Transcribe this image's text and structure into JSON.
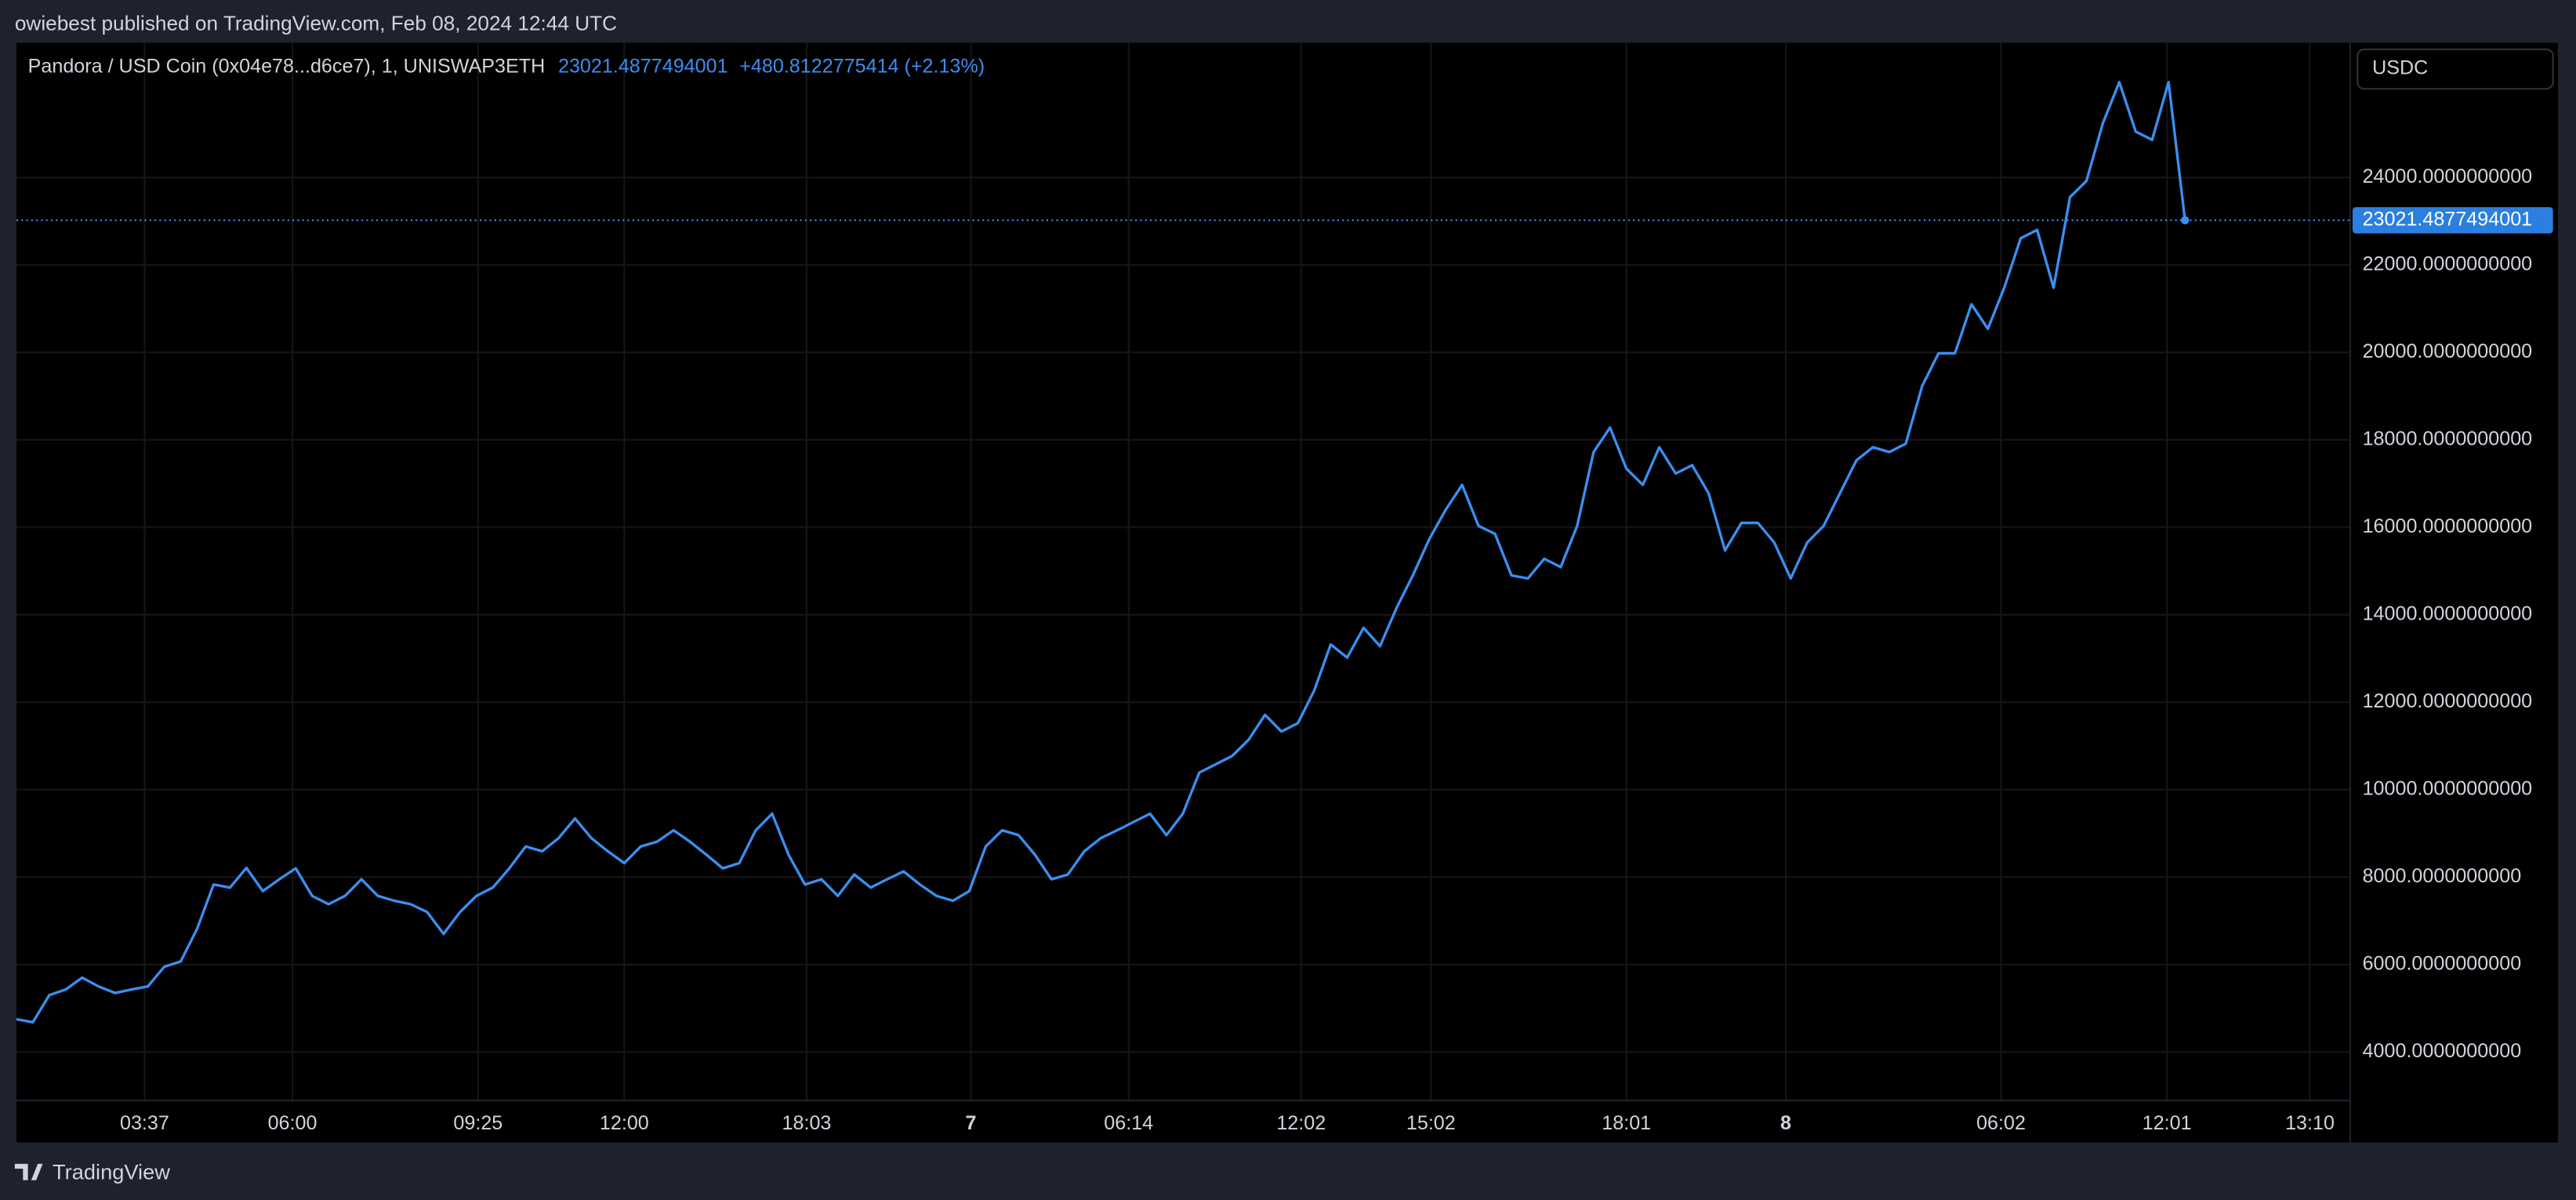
{
  "publisher": "owiebest published on TradingView.com, Feb 08, 2024 12:44 UTC",
  "legend": {
    "symbol": "Pandora / USD Coin (0x04e78...d6ce7), 1, UNISWAP3ETH",
    "price": "23021.4877494001",
    "change": "+480.8122775414 (+2.13%)"
  },
  "currency": "USDC",
  "footer": "TradingView",
  "chart_data": {
    "type": "line",
    "color": "#3a8ff0",
    "values": [
      4750,
      4680,
      5300,
      5430,
      5700,
      5500,
      5350,
      5430,
      5500,
      5950,
      6070,
      6820,
      7830,
      7760,
      8210,
      7680,
      7950,
      8200,
      7570,
      7380,
      7570,
      7950,
      7570,
      7460,
      7380,
      7200,
      6700,
      7200,
      7570,
      7760,
      8200,
      8700,
      8590,
      8890,
      9340,
      8890,
      8590,
      8320,
      8700,
      8810,
      9070,
      8810,
      8510,
      8200,
      8320,
      9070,
      9450,
      8510,
      7830,
      7950,
      7570,
      8060,
      7760,
      7950,
      8130,
      7830,
      7570,
      7460,
      7680,
      8700,
      9070,
      8960,
      8510,
      7950,
      8060,
      8590,
      8890,
      9070,
      9260,
      9450,
      8960,
      9450,
      10390,
      10580,
      10770,
      11140,
      11710,
      11330,
      11520,
      12270,
      13320,
      13020,
      13700,
      13280,
      14150,
      14900,
      15730,
      16400,
      16970,
      16030,
      15850,
      14900,
      14830,
      15280,
      15090,
      16030,
      17720,
      18280,
      17340,
      16970,
      17830,
      17230,
      17420,
      16780,
      15470,
      16100,
      16100,
      15650,
      14830,
      15650,
      16030,
      16780,
      17530,
      17830,
      17720,
      17910,
      19230,
      19980,
      19980,
      21100,
      20540,
      21480,
      22610,
      22800,
      21480,
      23550,
      23920,
      25240,
      26180,
      25050,
      24860,
      26180,
      23021.4877494001
    ],
    "xlim": [
      0,
      142
    ],
    "xticks": [
      {
        "value": 7.8,
        "label": "03:37"
      },
      {
        "value": 16.8,
        "label": "06:00"
      },
      {
        "value": 28.1,
        "label": "09:25"
      },
      {
        "value": 37,
        "label": "12:00"
      },
      {
        "value": 48.1,
        "label": "18:03"
      },
      {
        "value": 58.1,
        "label": "7"
      },
      {
        "value": 67.7,
        "label": "06:14"
      },
      {
        "value": 78.2,
        "label": "12:02"
      },
      {
        "value": 86.1,
        "label": "15:02"
      },
      {
        "value": 98,
        "label": "18:01"
      },
      {
        "value": 107.7,
        "label": "8"
      },
      {
        "value": 120.8,
        "label": "06:02"
      },
      {
        "value": 130.9,
        "label": "12:01"
      },
      {
        "value": 139.6,
        "label": "13:10"
      }
    ],
    "ylim": [
      2910,
      27080
    ],
    "yticks": [
      {
        "value": 4000,
        "label": "4000.0000000000"
      },
      {
        "value": 6000,
        "label": "6000.0000000000"
      },
      {
        "value": 8000,
        "label": "8000.0000000000"
      },
      {
        "value": 10000,
        "label": "10000.0000000000"
      },
      {
        "value": 12000,
        "label": "12000.0000000000"
      },
      {
        "value": 14000,
        "label": "14000.0000000000"
      },
      {
        "value": 16000,
        "label": "16000.0000000000"
      },
      {
        "value": 18000,
        "label": "18000.0000000000"
      },
      {
        "value": 20000,
        "label": "20000.0000000000"
      },
      {
        "value": 22000,
        "label": "22000.0000000000"
      },
      {
        "value": 24000,
        "label": "24000.0000000000"
      }
    ],
    "last_price": {
      "value": 23021.4877494001,
      "label": "23021.4877494001"
    },
    "grid": true
  }
}
